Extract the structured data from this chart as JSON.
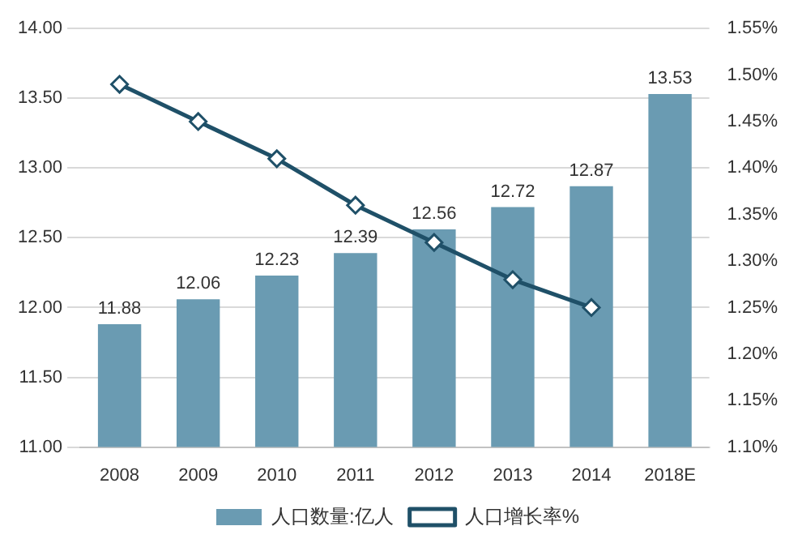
{
  "chart_data": {
    "type": "bar",
    "categories": [
      "2008",
      "2009",
      "2010",
      "2011",
      "2012",
      "2013",
      "2014",
      "2018E"
    ],
    "series": [
      {
        "name": "人口数量:亿人",
        "color": "#6a9bb2",
        "values": [
          11.88,
          12.06,
          12.23,
          12.39,
          12.56,
          12.72,
          12.87,
          13.53
        ],
        "value_labels": [
          "11.88",
          "12.06",
          "12.23",
          "12.39",
          "12.56",
          "12.72",
          "12.87",
          "13.53"
        ]
      },
      {
        "name": "人口增长率%",
        "type": "line",
        "axis": "y2",
        "color": "#1f5068",
        "values": [
          1.49,
          1.45,
          1.41,
          1.36,
          1.32,
          1.28,
          1.25,
          null
        ]
      }
    ],
    "ylim": [
      11,
      14
    ],
    "yticks": [
      {
        "value": 11,
        "label": "11.00"
      },
      {
        "value": 11.5,
        "label": "11.50"
      },
      {
        "value": 12,
        "label": "12.00"
      },
      {
        "value": 12.5,
        "label": "12.50"
      },
      {
        "value": 13,
        "label": "13.00"
      },
      {
        "value": 13.5,
        "label": "13.50"
      },
      {
        "value": 14,
        "label": "14.00"
      }
    ],
    "y2lim": [
      1.1,
      1.55
    ],
    "y2ticks": [
      {
        "value": 1.1,
        "label": "1.10%"
      },
      {
        "value": 1.15,
        "label": "1.15%"
      },
      {
        "value": 1.2,
        "label": "1.20%"
      },
      {
        "value": 1.25,
        "label": "1.25%"
      },
      {
        "value": 1.3,
        "label": "1.30%"
      },
      {
        "value": 1.35,
        "label": "1.35%"
      },
      {
        "value": 1.4,
        "label": "1.40%"
      },
      {
        "value": 1.45,
        "label": "1.45%"
      },
      {
        "value": 1.5,
        "label": "1.50%"
      },
      {
        "value": 1.55,
        "label": "1.55%"
      }
    ],
    "grid": "y",
    "legend": "bottom",
    "marker": "diamond",
    "line_style": "solid"
  }
}
